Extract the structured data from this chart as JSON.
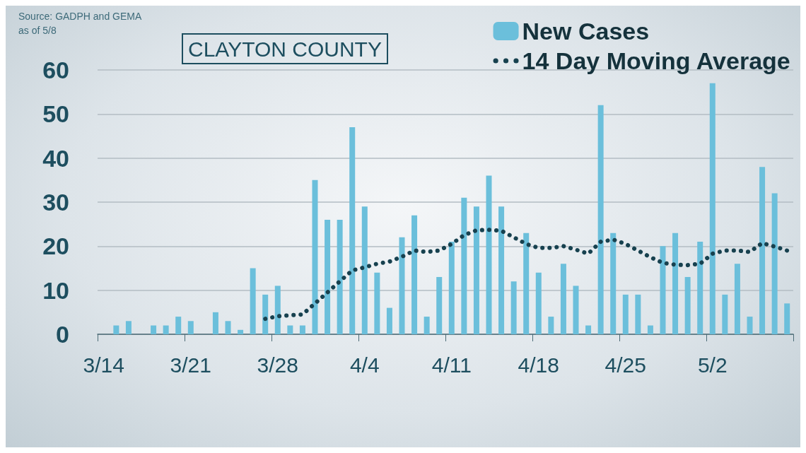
{
  "chart_data": {
    "type": "bar",
    "title": "CLAYTON COUNTY",
    "annotations": [
      "Source: GADPH and GEMA",
      "as of 5/8"
    ],
    "categories": [
      "3/14",
      null,
      null,
      null,
      null,
      null,
      null,
      "3/21",
      null,
      null,
      null,
      null,
      null,
      null,
      "3/28",
      null,
      null,
      null,
      null,
      null,
      null,
      "4/4",
      null,
      null,
      null,
      null,
      null,
      null,
      "4/11",
      null,
      null,
      null,
      null,
      null,
      null,
      "4/18",
      null,
      null,
      null,
      null,
      null,
      null,
      "4/25",
      null,
      null,
      null,
      null,
      null,
      null,
      "5/2",
      null,
      null,
      null,
      null,
      null,
      null
    ],
    "series": [
      {
        "name": "New Cases",
        "color": "#6bbfdb",
        "values": [
          null,
          2,
          3,
          null,
          2,
          2,
          4,
          3,
          null,
          5,
          3,
          1,
          15,
          9,
          11,
          2,
          2,
          35,
          26,
          26,
          47,
          29,
          14,
          6,
          22,
          27,
          4,
          13,
          21,
          31,
          29,
          36,
          29,
          12,
          23,
          14,
          4,
          16,
          11,
          2,
          52,
          23,
          9,
          9,
          2,
          20,
          23,
          13,
          21,
          57,
          9,
          16,
          4,
          38,
          32,
          7
        ]
      },
      {
        "name": "14 Day Moving Average",
        "type": "line",
        "color": "#17414f",
        "line_style": "dotted",
        "marker": "none",
        "values": [
          null,
          null,
          null,
          null,
          null,
          null,
          null,
          null,
          null,
          null,
          null,
          null,
          null,
          3.5,
          4.1,
          4.3,
          4.5,
          7,
          9.5,
          12,
          14.5,
          15.2,
          16,
          16.5,
          17.6,
          19,
          18.7,
          19,
          20.5,
          22.5,
          23.6,
          23.7,
          23.5,
          22,
          20.5,
          19.6,
          19.6,
          20,
          19.2,
          18.3,
          21,
          21.5,
          20.5,
          19,
          17.5,
          16.2,
          15.8,
          15.7,
          16,
          18.3,
          19,
          19,
          18.7,
          20.7,
          19.9,
          19
        ]
      }
    ],
    "ylim": [
      0,
      60
    ],
    "yticks": [
      0,
      10,
      20,
      30,
      40,
      50,
      60
    ],
    "grid": "y",
    "legend": "top right"
  }
}
